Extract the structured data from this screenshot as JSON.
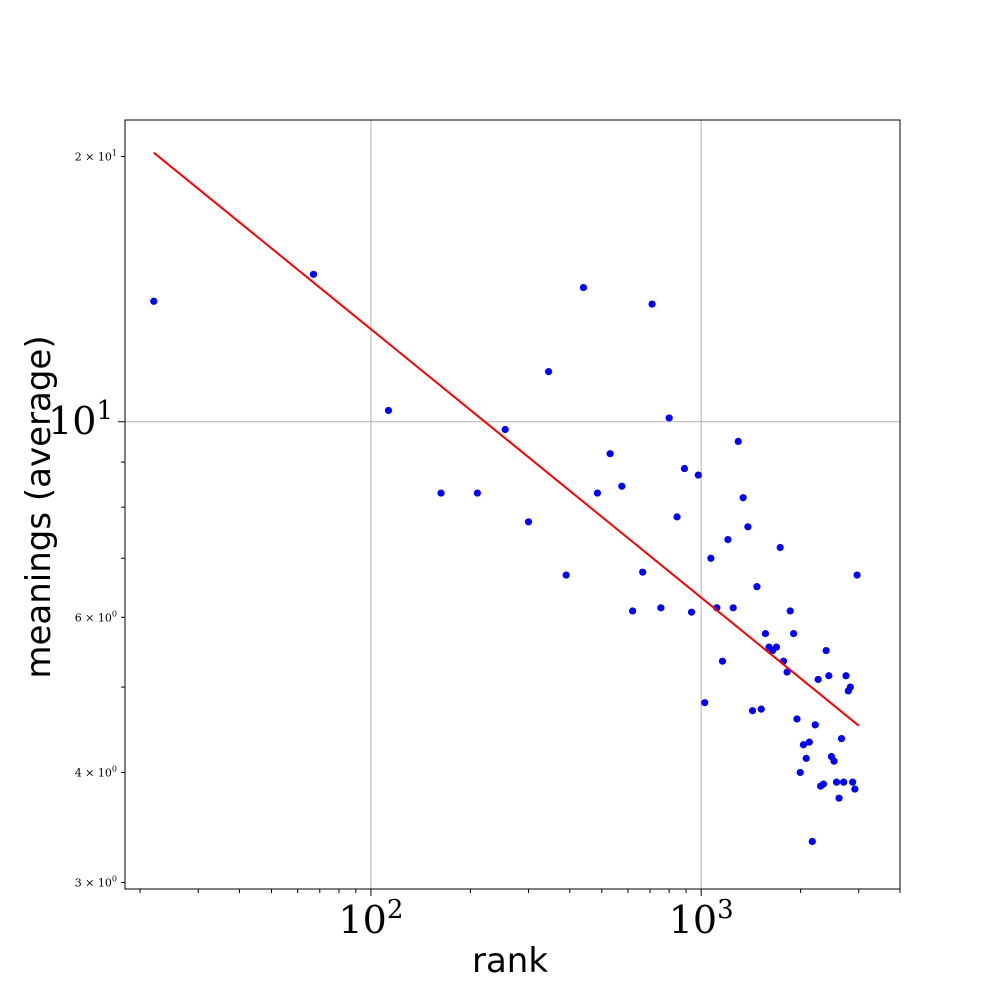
{
  "chart_data": {
    "type": "scatter",
    "title": "",
    "xlabel": "rank",
    "ylabel": "meanings (average)",
    "x_scale": "log",
    "y_scale": "log",
    "xlim": [
      18,
      4000
    ],
    "ylim": [
      2.95,
      22
    ],
    "grid": true,
    "x_major_ticks": [
      {
        "value": 100,
        "label": "10",
        "exp": "2"
      },
      {
        "value": 1000,
        "label": "10",
        "exp": "3"
      }
    ],
    "y_major_ticks": [
      {
        "value": 10,
        "label": "10",
        "exp": "1"
      }
    ],
    "y_minor_tick_labels": [
      {
        "value": 20,
        "label": "2 × 10",
        "exp": "1"
      },
      {
        "value": 6,
        "label": "6 × 10",
        "exp": "0"
      },
      {
        "value": 4,
        "label": "4 × 10",
        "exp": "0"
      },
      {
        "value": 3,
        "label": "3 × 10",
        "exp": "0"
      }
    ],
    "series": [
      {
        "type": "scatter",
        "color": "#0000ff",
        "points": [
          [
            22,
            13.7
          ],
          [
            67,
            14.7
          ],
          [
            113,
            10.3
          ],
          [
            163,
            8.3
          ],
          [
            210,
            8.3
          ],
          [
            255,
            9.8
          ],
          [
            300,
            7.7
          ],
          [
            345,
            11.4
          ],
          [
            390,
            6.7
          ],
          [
            440,
            14.2
          ],
          [
            485,
            8.3
          ],
          [
            530,
            9.2
          ],
          [
            575,
            8.45
          ],
          [
            620,
            6.1
          ],
          [
            665,
            6.75
          ],
          [
            710,
            13.6
          ],
          [
            755,
            6.15
          ],
          [
            800,
            10.1
          ],
          [
            845,
            7.8
          ],
          [
            890,
            8.85
          ],
          [
            935,
            6.08
          ],
          [
            980,
            8.7
          ],
          [
            1025,
            4.8
          ],
          [
            1070,
            7.0
          ],
          [
            1115,
            6.15
          ],
          [
            1160,
            5.35
          ],
          [
            1205,
            7.35
          ],
          [
            1250,
            6.15
          ],
          [
            1295,
            9.5
          ],
          [
            1340,
            8.2
          ],
          [
            1385,
            7.6
          ],
          [
            1430,
            4.7
          ],
          [
            1475,
            6.5
          ],
          [
            1520,
            4.72
          ],
          [
            1565,
            5.75
          ],
          [
            1605,
            5.55
          ],
          [
            1645,
            5.5
          ],
          [
            1690,
            5.55
          ],
          [
            1735,
            7.2
          ],
          [
            1775,
            5.35
          ],
          [
            1820,
            5.2
          ],
          [
            1860,
            6.1
          ],
          [
            1905,
            5.75
          ],
          [
            1950,
            4.6
          ],
          [
            1995,
            4.0
          ],
          [
            2040,
            4.3
          ],
          [
            2080,
            4.15
          ],
          [
            2125,
            4.33
          ],
          [
            2170,
            3.34
          ],
          [
            2215,
            4.53
          ],
          [
            2260,
            5.1
          ],
          [
            2300,
            3.86
          ],
          [
            2345,
            3.88
          ],
          [
            2390,
            5.5
          ],
          [
            2435,
            5.15
          ],
          [
            2480,
            4.17
          ],
          [
            2525,
            4.12
          ],
          [
            2570,
            3.9
          ],
          [
            2615,
            3.74
          ],
          [
            2660,
            4.37
          ],
          [
            2700,
            3.9
          ],
          [
            2745,
            5.15
          ],
          [
            2790,
            4.95
          ],
          [
            2830,
            5.0
          ],
          [
            2875,
            3.9
          ],
          [
            2920,
            3.83
          ],
          [
            2965,
            6.7
          ]
        ]
      },
      {
        "type": "line",
        "color": "#ff0000",
        "points": [
          [
            22,
            20.2
          ],
          [
            3000,
            4.52
          ]
        ]
      }
    ]
  }
}
